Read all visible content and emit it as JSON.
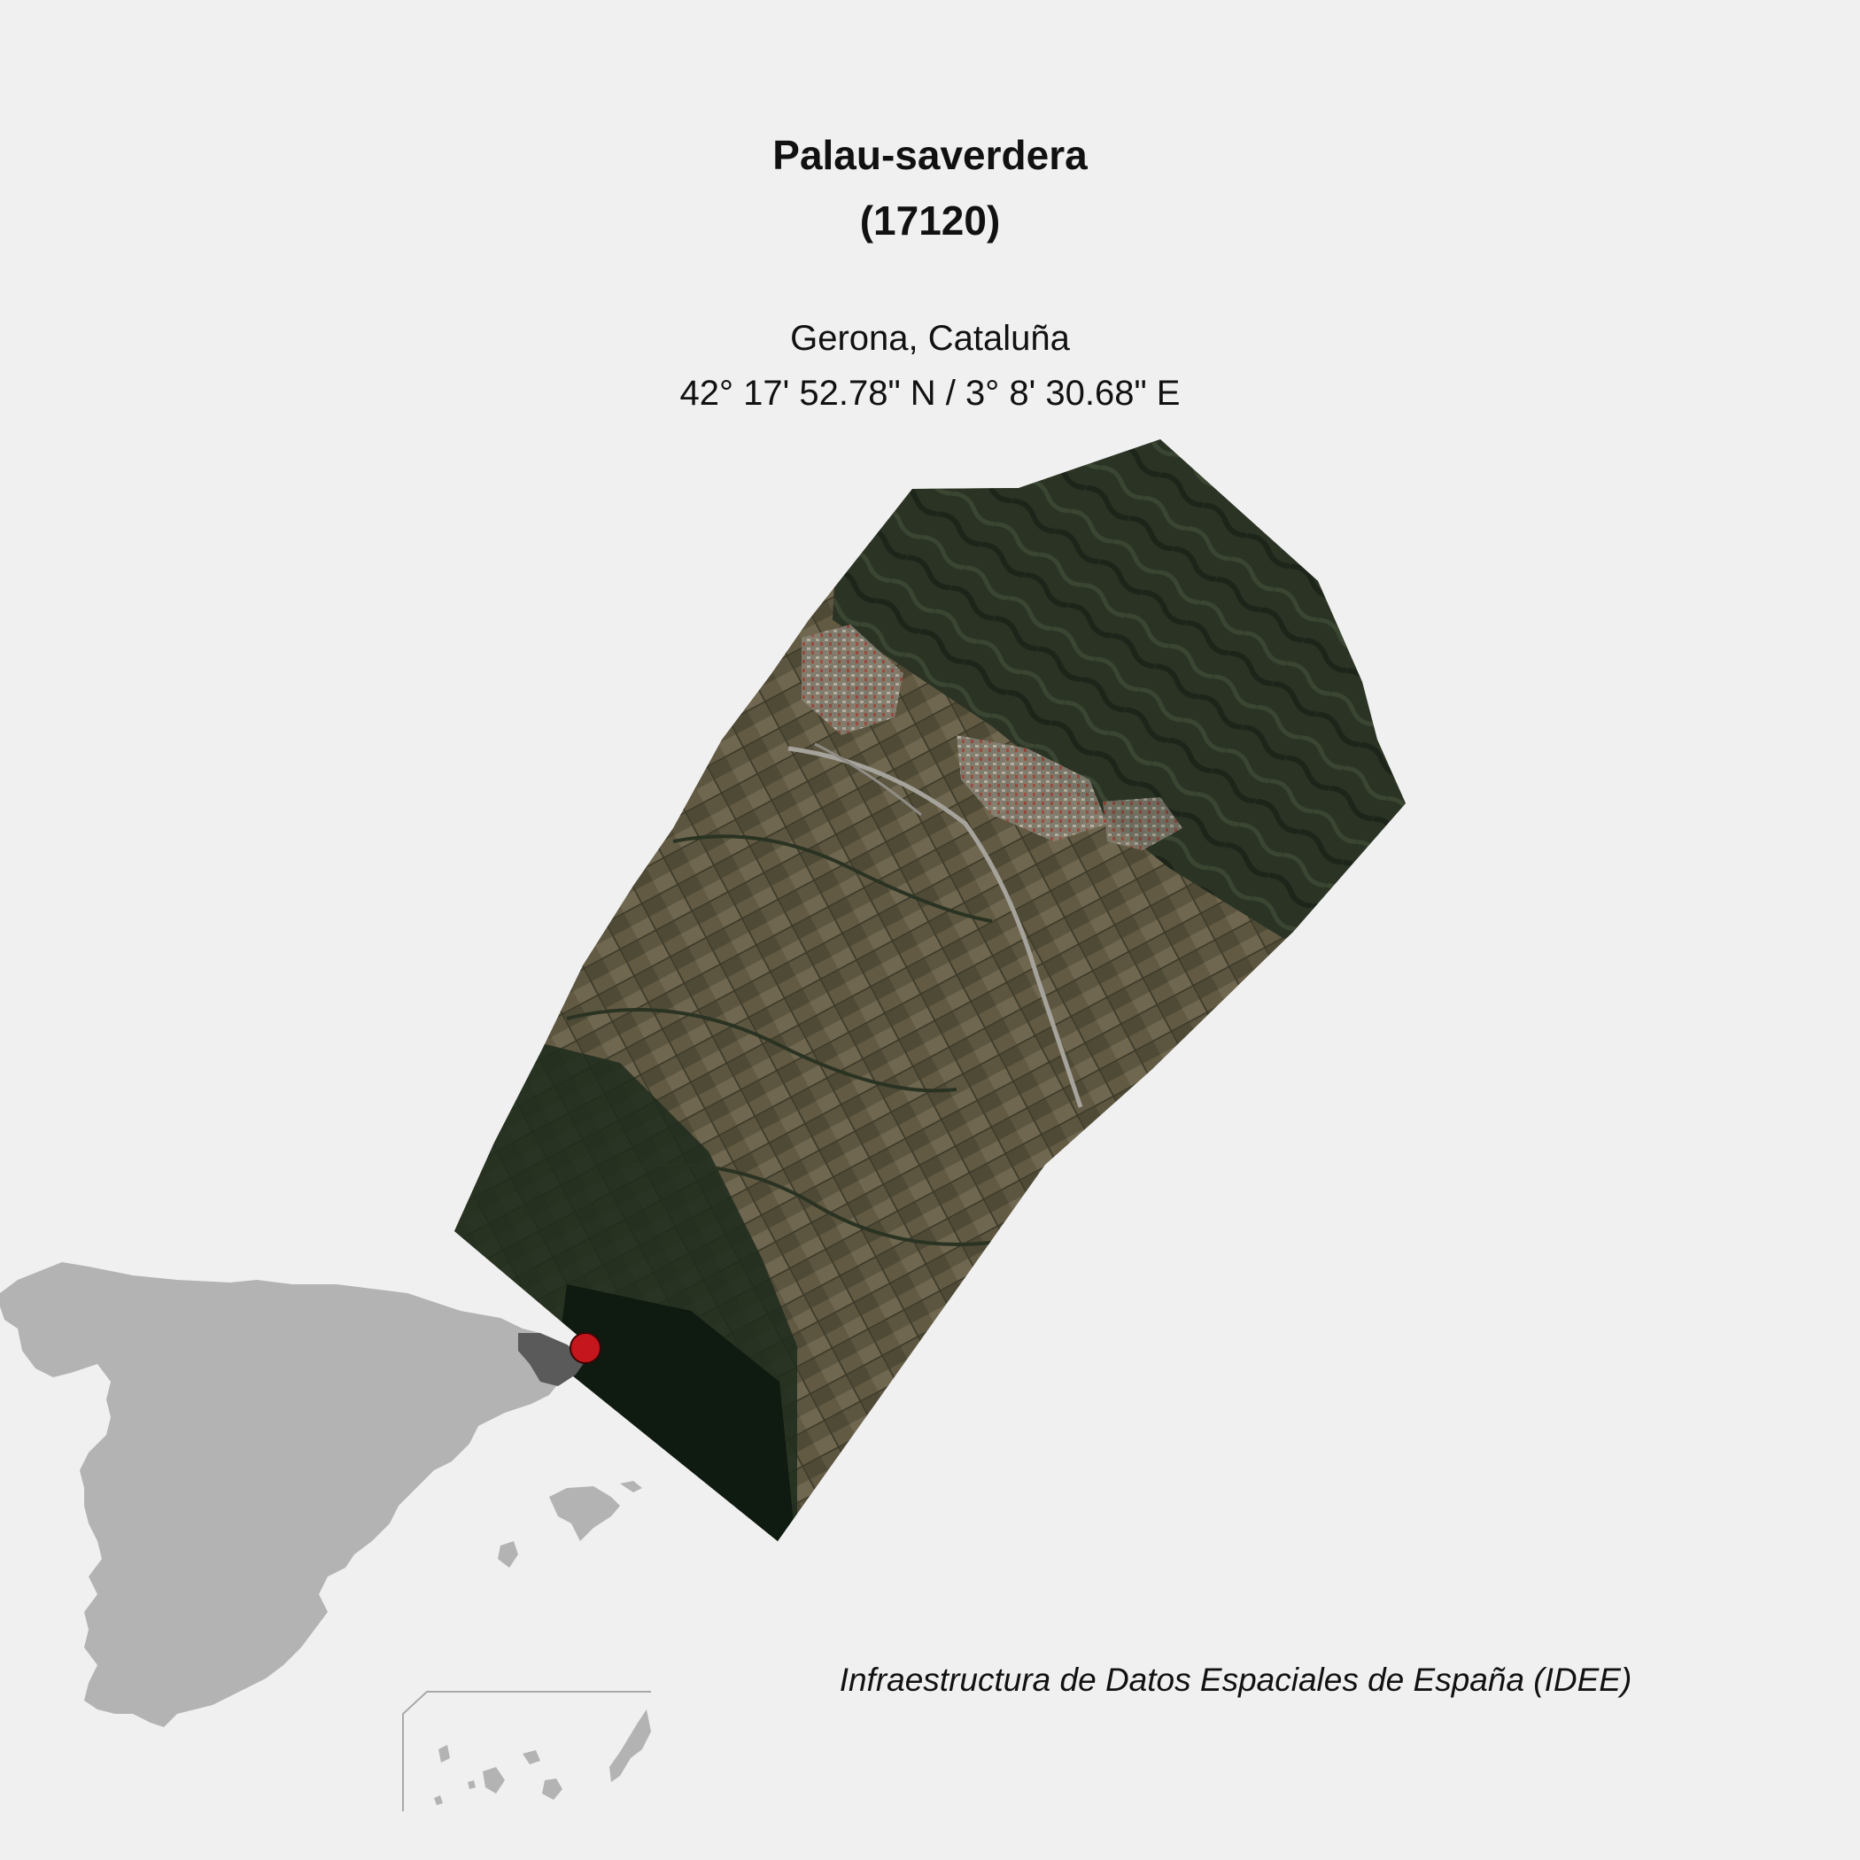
{
  "map": {
    "title_line1": "Palau-saverdera",
    "title_line2": "(17120)",
    "region": "Gerona, Cataluña",
    "coordinates": "42° 17' 52.78\" N / 3° 8' 30.68\" E",
    "source": "Infraestructura de Datos Espaciales de España (IDEE)"
  },
  "colors": {
    "background": "#f0f0f0",
    "inset_land": "#b3b3b3",
    "inset_province": "#5a5a5a",
    "marker": "#c4161c",
    "frame_line": "#a8a8a8",
    "terrain_dark": "#1f2a1c",
    "terrain_mid": "#4a4a34",
    "terrain_field": "#6b6249"
  },
  "layers": [
    "satellite-imagery",
    "spain-inset-map",
    "location-marker",
    "canary-islands-inset"
  ]
}
